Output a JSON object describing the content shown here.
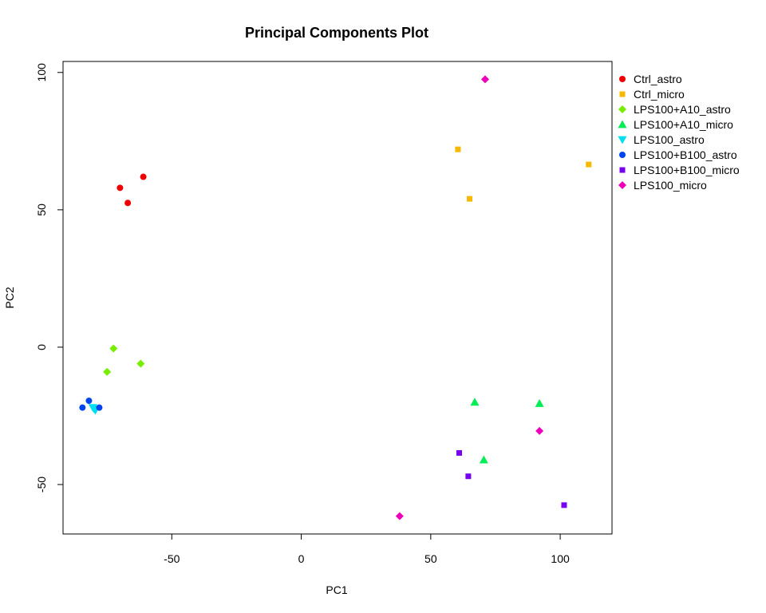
{
  "chart_data": {
    "type": "scatter",
    "title": "Principal Components Plot",
    "xlabel": "PC1",
    "ylabel": "PC2",
    "xlim": [
      -92,
      120
    ],
    "ylim": [
      -68,
      104
    ],
    "xticks": [
      -50,
      0,
      50,
      100
    ],
    "yticks": [
      -50,
      0,
      50,
      100
    ],
    "grid": false,
    "legend_position": "right",
    "series": [
      {
        "name": "Ctrl_astro",
        "color": "#ee0000",
        "marker": "circle",
        "points": [
          [
            -70,
            58
          ],
          [
            -67,
            52.5
          ],
          [
            -61,
            62
          ]
        ]
      },
      {
        "name": "Ctrl_micro",
        "color": "#f7b800",
        "marker": "square",
        "points": [
          [
            60.5,
            72
          ],
          [
            65,
            54
          ],
          [
            111,
            66.5
          ]
        ]
      },
      {
        "name": "LPS100+A10_astro",
        "color": "#77ee00",
        "marker": "diamond",
        "points": [
          [
            -72.5,
            -0.5
          ],
          [
            -75,
            -9
          ],
          [
            -62,
            -6
          ]
        ]
      },
      {
        "name": "LPS100+A10_micro",
        "color": "#00ee55",
        "marker": "triangle-up",
        "points": [
          [
            67,
            -20
          ],
          [
            92,
            -20.5
          ],
          [
            70.5,
            -41
          ]
        ]
      },
      {
        "name": "LPS100_astro",
        "color": "#00dfee",
        "marker": "triangle-down",
        "points": [
          [
            -80.5,
            -22
          ],
          [
            -79.5,
            -23
          ],
          [
            -80,
            -22.5
          ]
        ]
      },
      {
        "name": "LPS100+B100_astro",
        "color": "#0044ee",
        "marker": "circle",
        "points": [
          [
            -84.5,
            -22
          ],
          [
            -82,
            -19.5
          ],
          [
            -78,
            -22
          ]
        ]
      },
      {
        "name": "LPS100+B100_micro",
        "color": "#7700ee",
        "marker": "square",
        "points": [
          [
            61,
            -38.5
          ],
          [
            64.5,
            -47
          ],
          [
            101.5,
            -57.5
          ]
        ]
      },
      {
        "name": "LPS100_micro",
        "color": "#ee00bb",
        "marker": "diamond",
        "points": [
          [
            71,
            97.5
          ],
          [
            92,
            -30.5
          ],
          [
            38,
            -61.5
          ]
        ]
      }
    ]
  }
}
